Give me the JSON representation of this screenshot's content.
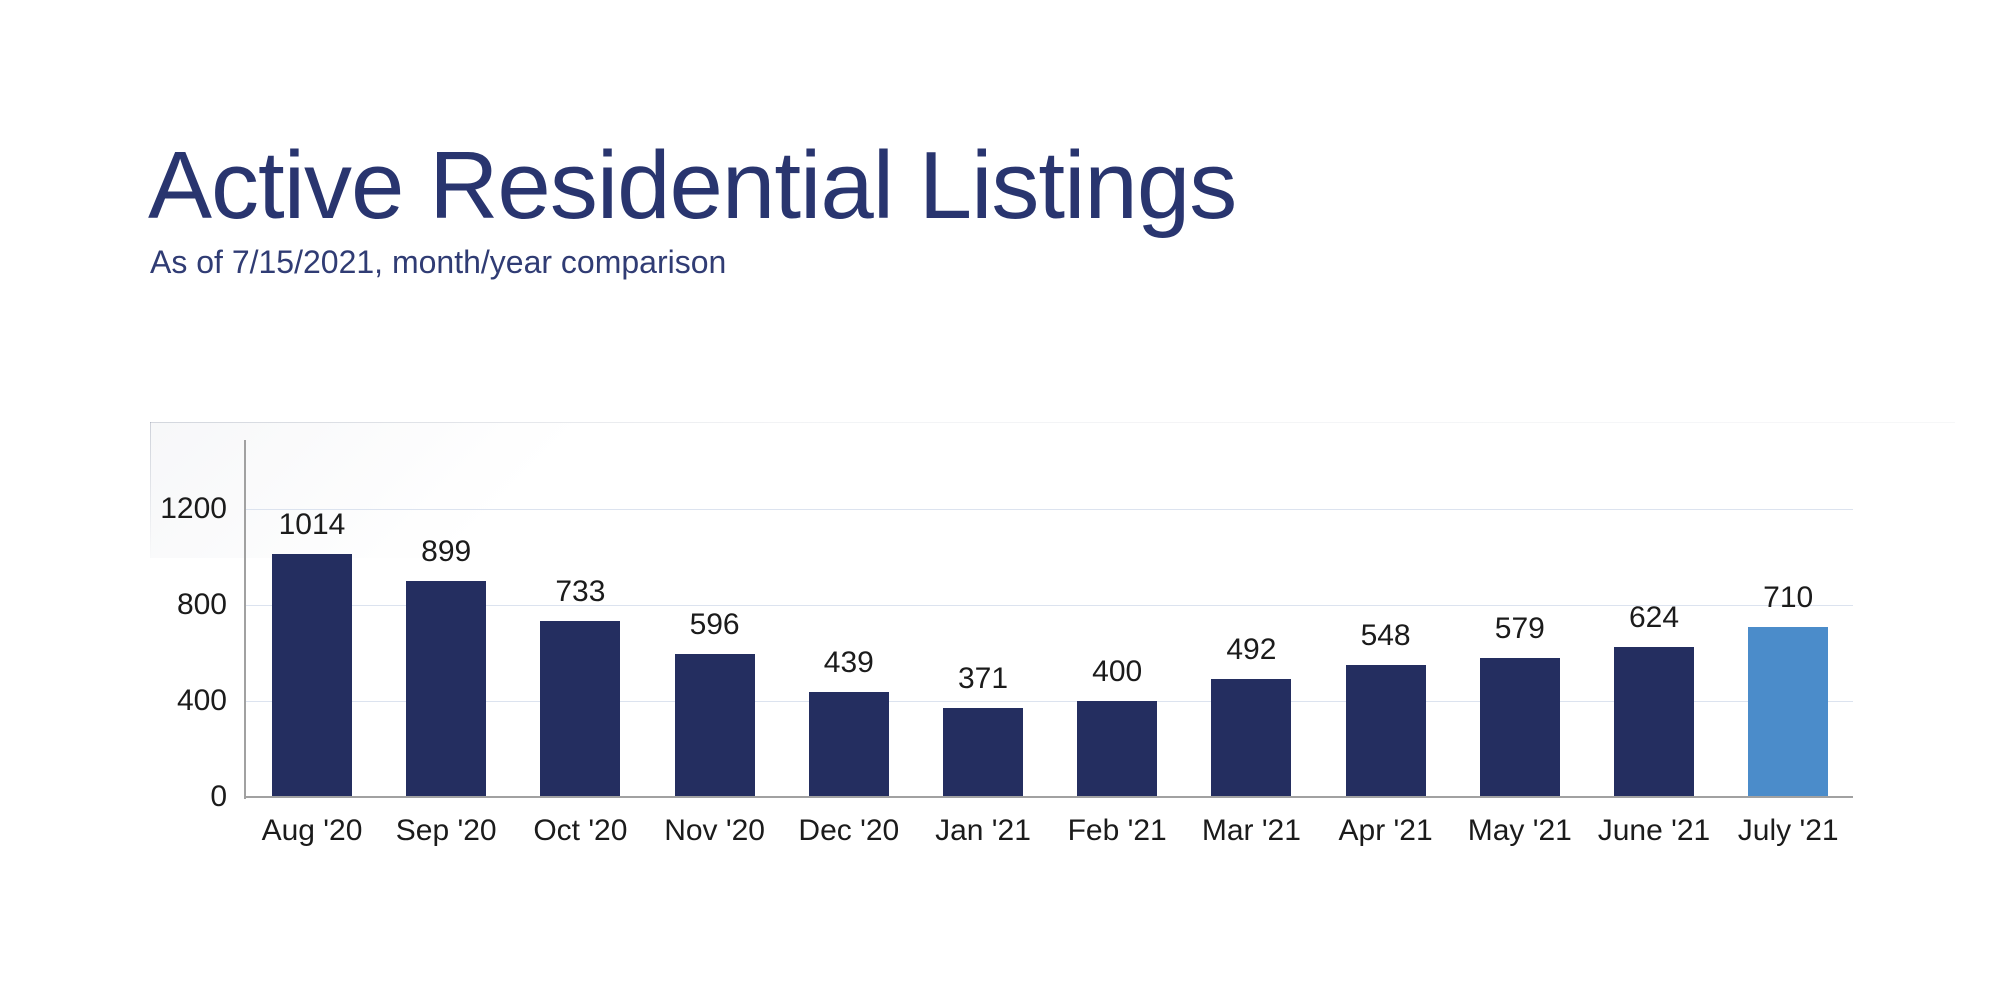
{
  "header": {
    "title": "Active Residential Listings",
    "subtitle": "As of 7/15/2021, month/year comparison"
  },
  "chart_data": {
    "type": "bar",
    "title": "Active Residential Listings",
    "subtitle": "As of 7/15/2021, month/year comparison",
    "categories": [
      "Aug '20",
      "Sep '20",
      "Oct '20",
      "Nov '20",
      "Dec '20",
      "Jan '21",
      "Feb '21",
      "Mar '21",
      "Apr '21",
      "May '21",
      "June '21",
      "July '21"
    ],
    "values": [
      1014,
      899,
      733,
      596,
      439,
      371,
      400,
      492,
      548,
      579,
      624,
      710
    ],
    "value_labels": true,
    "xlabel": "",
    "ylabel": "",
    "yticks": [
      0,
      400,
      800,
      1200
    ],
    "ylim": [
      0,
      1500
    ],
    "grid": true,
    "legend": false,
    "highlight_index": 11
  },
  "colors": {
    "title": "#29356f",
    "subtitle": "#303c74",
    "bar": "#242e60",
    "highlight_bar": "#4b8cca",
    "gridline": "#dce3ef",
    "axis": "#a1a1a1",
    "label_text": "#1b1b1b",
    "background": "#ffffff"
  }
}
